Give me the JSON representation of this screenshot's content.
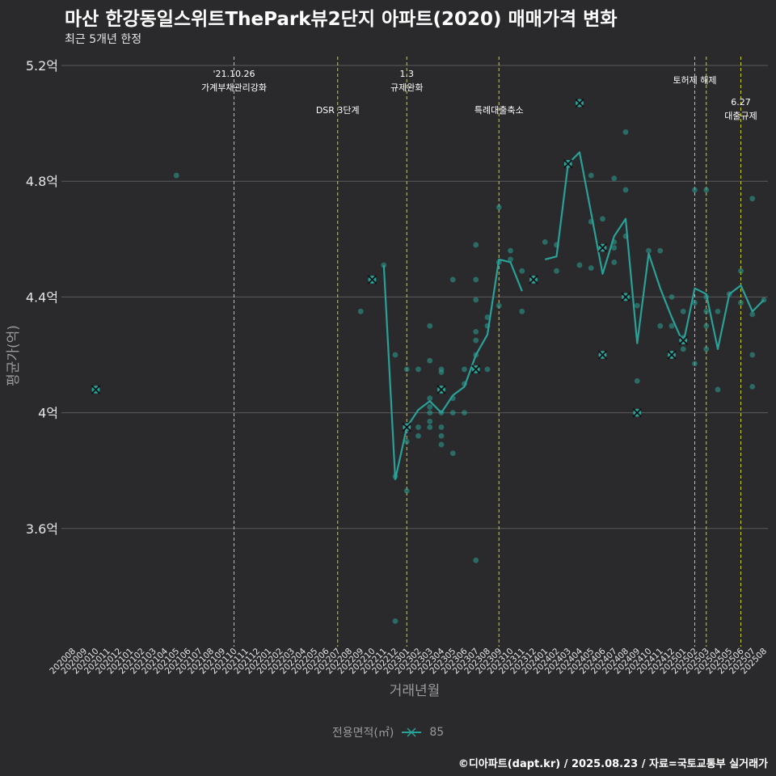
{
  "title": "마산 한강동일스위트ThePark뷰2단지 아파트(2020) 매매가격 변화",
  "subtitle": "최근 5개년 한정",
  "footer": "©디아파트(dapt.kr) / 2025.08.23 / 자료=국토교통부 실거래가",
  "colors": {
    "background": "#2a2a2c",
    "grid": "#5a5a5a",
    "series": "#2aa198",
    "event_line": "#d4d400",
    "marker_x": "#111111"
  },
  "chart_data": {
    "type": "line",
    "xlabel": "거래년월",
    "ylabel": "평균가(억)",
    "y_ticks": [
      {
        "value": 3.6,
        "label": "3.6억"
      },
      {
        "value": 4.0,
        "label": "4억"
      },
      {
        "value": 4.4,
        "label": "4.4억"
      },
      {
        "value": 4.8,
        "label": "4.8억"
      },
      {
        "value": 5.2,
        "label": "5.2억"
      }
    ],
    "ylim": [
      3.2,
      5.2
    ],
    "legend": {
      "title": "전용면적(㎡)",
      "placement": "bottom"
    },
    "categories": [
      "202008",
      "202009",
      "202010",
      "202011",
      "202012",
      "202101",
      "202102",
      "202103",
      "202104",
      "202105",
      "202106",
      "202107",
      "202108",
      "202109",
      "202110",
      "202111",
      "202112",
      "202201",
      "202202",
      "202203",
      "202204",
      "202205",
      "202206",
      "202207",
      "202208",
      "202209",
      "202210",
      "202211",
      "202212",
      "202301",
      "202302",
      "202303",
      "202304",
      "202305",
      "202306",
      "202307",
      "202308",
      "202309",
      "202310",
      "202311",
      "202312",
      "202401",
      "202402",
      "202403",
      "202404",
      "202405",
      "202406",
      "202407",
      "202408",
      "202409",
      "202410",
      "202411",
      "202412",
      "202501",
      "202502",
      "202503",
      "202504",
      "202505",
      "202506",
      "202507",
      "202508"
    ],
    "series": [
      {
        "name": "85",
        "line": [
          [
            "202211",
            4.51
          ],
          [
            "202212",
            3.77
          ],
          [
            "202301",
            3.95
          ],
          [
            "202302",
            4.01
          ],
          [
            "202303",
            4.04
          ],
          [
            "202304",
            4.0
          ],
          [
            "202305",
            4.06
          ],
          [
            "202306",
            4.09
          ],
          [
            "202307",
            4.2
          ],
          [
            "202308",
            4.27
          ],
          [
            "202309",
            4.53
          ],
          [
            "202310",
            4.52
          ],
          [
            "202311",
            4.42
          ],
          null,
          [
            "202401",
            4.53
          ],
          [
            "202402",
            4.54
          ],
          [
            "202403",
            4.86
          ],
          [
            "202404",
            4.9
          ],
          [
            "202405",
            4.69
          ],
          [
            "202406",
            4.48
          ],
          [
            "202407",
            4.61
          ],
          [
            "202408",
            4.67
          ],
          [
            "202409",
            4.24
          ],
          [
            "202410",
            4.55
          ],
          [
            "202411",
            4.43
          ],
          [
            "202412",
            4.33
          ],
          [
            "202501",
            4.24
          ],
          [
            "202502",
            4.43
          ],
          [
            "202503",
            4.41
          ],
          [
            "202504",
            4.22
          ],
          [
            "202505",
            4.41
          ],
          [
            "202506",
            4.44
          ],
          [
            "202507",
            4.35
          ],
          [
            "202508",
            4.39
          ]
        ],
        "points": [
          [
            "202105",
            4.82
          ],
          [
            "202209",
            4.35
          ],
          [
            "202211",
            4.51
          ],
          [
            "202212",
            3.28
          ],
          [
            "202212",
            3.78
          ],
          [
            "202212",
            4.2
          ],
          [
            "202301",
            3.73
          ],
          [
            "202301",
            3.9
          ],
          [
            "202301",
            4.15
          ],
          [
            "202301",
            3.95
          ],
          [
            "202302",
            3.92
          ],
          [
            "202302",
            3.95
          ],
          [
            "202302",
            4.15
          ],
          [
            "202303",
            3.95
          ],
          [
            "202303",
            3.97
          ],
          [
            "202303",
            4.0
          ],
          [
            "202303",
            4.02
          ],
          [
            "202303",
            4.05
          ],
          [
            "202303",
            4.18
          ],
          [
            "202303",
            4.3
          ],
          [
            "202304",
            3.89
          ],
          [
            "202304",
            3.92
          ],
          [
            "202304",
            3.95
          ],
          [
            "202304",
            4.0
          ],
          [
            "202304",
            4.14
          ],
          [
            "202304",
            4.15
          ],
          [
            "202305",
            3.86
          ],
          [
            "202305",
            4.0
          ],
          [
            "202305",
            4.05
          ],
          [
            "202305",
            4.46
          ],
          [
            "202306",
            4.0
          ],
          [
            "202306",
            4.1
          ],
          [
            "202306",
            4.15
          ],
          [
            "202307",
            3.49
          ],
          [
            "202307",
            4.2
          ],
          [
            "202307",
            4.25
          ],
          [
            "202307",
            4.28
          ],
          [
            "202307",
            4.39
          ],
          [
            "202307",
            4.46
          ],
          [
            "202307",
            4.58
          ],
          [
            "202308",
            4.15
          ],
          [
            "202308",
            4.3
          ],
          [
            "202308",
            4.33
          ],
          [
            "202309",
            4.37
          ],
          [
            "202309",
            4.52
          ],
          [
            "202309",
            4.71
          ],
          [
            "202310",
            4.53
          ],
          [
            "202310",
            4.56
          ],
          [
            "202311",
            4.35
          ],
          [
            "202311",
            4.49
          ],
          [
            "202401",
            4.59
          ],
          [
            "202402",
            4.49
          ],
          [
            "202402",
            4.58
          ],
          [
            "202403",
            4.86
          ],
          [
            "202404",
            4.51
          ],
          [
            "202404",
            5.07
          ],
          [
            "202405",
            4.5
          ],
          [
            "202405",
            4.66
          ],
          [
            "202405",
            4.82
          ],
          [
            "202406",
            4.57
          ],
          [
            "202406",
            4.67
          ],
          [
            "202407",
            4.52
          ],
          [
            "202407",
            4.57
          ],
          [
            "202407",
            4.59
          ],
          [
            "202407",
            4.81
          ],
          [
            "202408",
            4.61
          ],
          [
            "202408",
            4.77
          ],
          [
            "202408",
            4.97
          ],
          [
            "202409",
            4.11
          ],
          [
            "202409",
            4.37
          ],
          [
            "202410",
            4.56
          ],
          [
            "202411",
            4.3
          ],
          [
            "202411",
            4.56
          ],
          [
            "202412",
            4.3
          ],
          [
            "202412",
            4.4
          ],
          [
            "202501",
            4.22
          ],
          [
            "202501",
            4.26
          ],
          [
            "202501",
            4.35
          ],
          [
            "202502",
            4.17
          ],
          [
            "202502",
            4.38
          ],
          [
            "202502",
            4.77
          ],
          [
            "202503",
            4.22
          ],
          [
            "202503",
            4.3
          ],
          [
            "202503",
            4.35
          ],
          [
            "202503",
            4.4
          ],
          [
            "202503",
            4.77
          ],
          [
            "202504",
            4.08
          ],
          [
            "202504",
            4.35
          ],
          [
            "202505",
            4.41
          ],
          [
            "202506",
            4.38
          ],
          [
            "202506",
            4.49
          ],
          [
            "202507",
            4.09
          ],
          [
            "202507",
            4.2
          ],
          [
            "202507",
            4.34
          ],
          [
            "202507",
            4.74
          ],
          [
            "202508",
            4.39
          ]
        ],
        "x_markers": [
          [
            "202010",
            4.08
          ],
          [
            "202210",
            4.46
          ],
          [
            "202301",
            3.95
          ],
          [
            "202304",
            4.08
          ],
          [
            "202307",
            4.15
          ],
          [
            "202312",
            4.46
          ],
          [
            "202403",
            4.86
          ],
          [
            "202404",
            5.07
          ],
          [
            "202406",
            4.57
          ],
          [
            "202406",
            4.2
          ],
          [
            "202408",
            4.4
          ],
          [
            "202409",
            4.0
          ],
          [
            "202412",
            4.2
          ],
          [
            "202501",
            4.25
          ]
        ]
      }
    ],
    "annotations": [
      {
        "x": "202110",
        "lines": [
          "'21.10.26",
          "가계부채관리강화"
        ],
        "row": "top"
      },
      {
        "x": "202207",
        "lines": [
          "DSR 3단계"
        ],
        "row": "low"
      },
      {
        "x": "202301",
        "lines": [
          "1.3",
          "규제완화"
        ],
        "row": "top"
      },
      {
        "x": "202309",
        "lines": [
          "특례대출축소"
        ],
        "row": "low"
      },
      {
        "x": "202502",
        "lines": [
          "토허제 해제"
        ],
        "row": "mid"
      },
      {
        "x": "202503",
        "lines": [],
        "row": "mid"
      },
      {
        "x": "202506",
        "lines": [
          "6.27",
          "대출규제"
        ],
        "row": "bottom"
      }
    ]
  }
}
